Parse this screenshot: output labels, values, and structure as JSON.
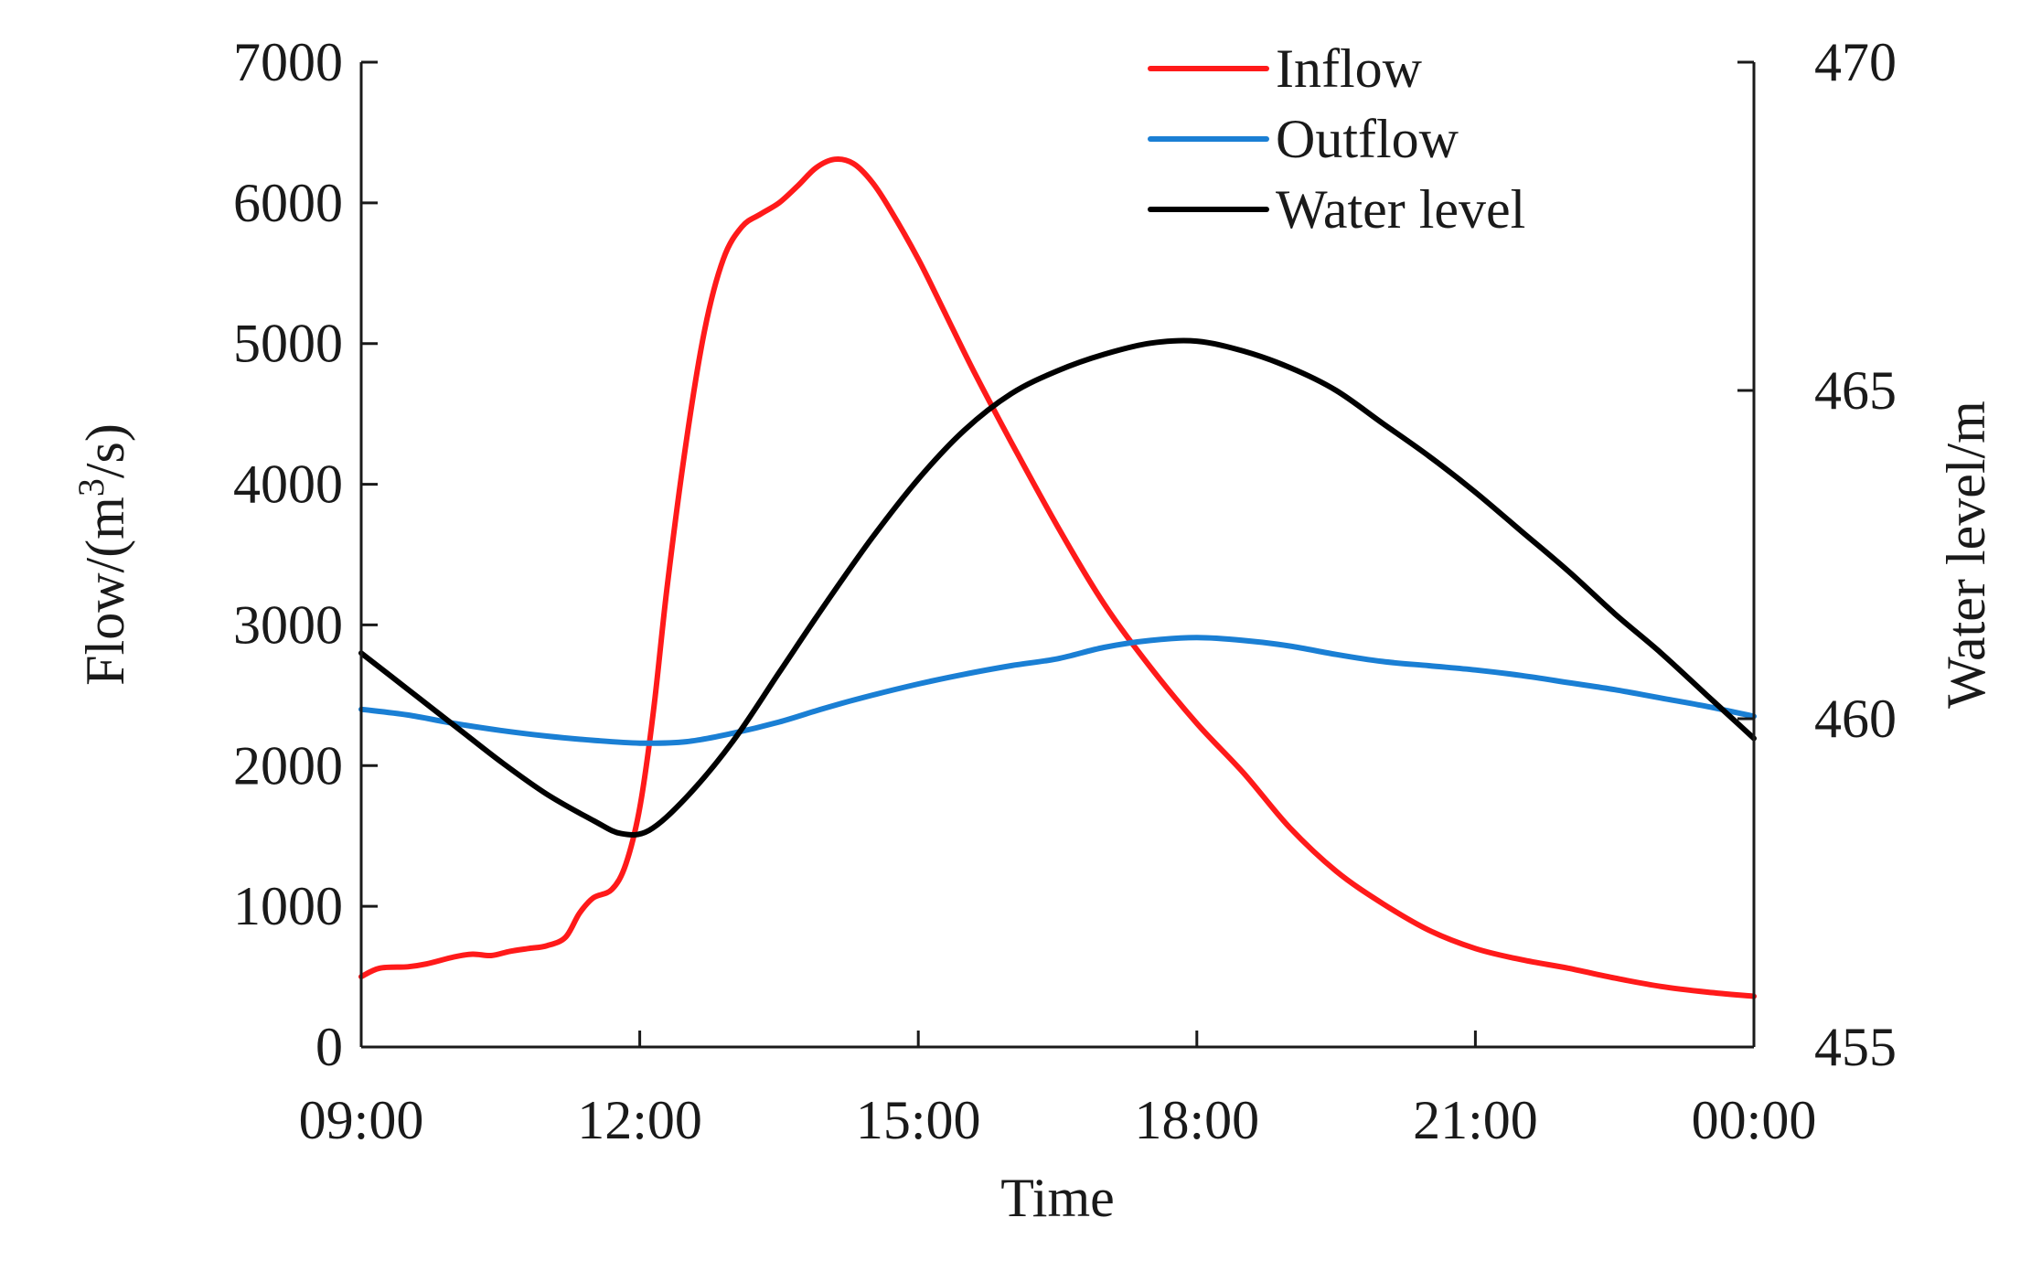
{
  "chart_data": {
    "type": "line",
    "title": "",
    "xlabel": "Time",
    "ylabel": "Flow/(m³/s)",
    "ylabel_parts": {
      "pre": "Flow/(m",
      "sup": "3",
      "post": "/s)"
    },
    "y2label": "Water level/m",
    "x_ticks": [
      {
        "h": 0,
        "label": "09:00"
      },
      {
        "h": 3,
        "label": "12:00"
      },
      {
        "h": 6,
        "label": "15:00"
      },
      {
        "h": 9,
        "label": "18:00"
      },
      {
        "h": 12,
        "label": "21:00"
      },
      {
        "h": 15,
        "label": "00:00"
      }
    ],
    "xlim": [
      0,
      15
    ],
    "ylim": [
      0,
      7000
    ],
    "y_ticks": [
      0,
      1000,
      2000,
      3000,
      4000,
      5000,
      6000,
      7000
    ],
    "y2lim": [
      455,
      470
    ],
    "y2_ticks": [
      455,
      460,
      465,
      470
    ],
    "x_unit_note": "hours after 09:00",
    "legend_position": "top-right",
    "series": [
      {
        "name": "Inflow",
        "axis": "left",
        "color": "#ff1a1a",
        "points": [
          [
            0,
            500
          ],
          [
            0.2,
            560
          ],
          [
            0.5,
            570
          ],
          [
            0.7,
            590
          ],
          [
            1.0,
            640
          ],
          [
            1.2,
            660
          ],
          [
            1.4,
            650
          ],
          [
            1.6,
            680
          ],
          [
            1.8,
            700
          ],
          [
            2.0,
            720
          ],
          [
            2.2,
            780
          ],
          [
            2.35,
            950
          ],
          [
            2.5,
            1060
          ],
          [
            2.7,
            1120
          ],
          [
            2.85,
            1300
          ],
          [
            3.0,
            1700
          ],
          [
            3.15,
            2400
          ],
          [
            3.3,
            3300
          ],
          [
            3.5,
            4300
          ],
          [
            3.7,
            5100
          ],
          [
            3.9,
            5600
          ],
          [
            4.1,
            5830
          ],
          [
            4.3,
            5920
          ],
          [
            4.5,
            6000
          ],
          [
            4.7,
            6120
          ],
          [
            4.9,
            6250
          ],
          [
            5.1,
            6310
          ],
          [
            5.3,
            6280
          ],
          [
            5.5,
            6150
          ],
          [
            5.7,
            5950
          ],
          [
            6.0,
            5600
          ],
          [
            6.3,
            5200
          ],
          [
            6.6,
            4800
          ],
          [
            7.0,
            4300
          ],
          [
            7.5,
            3700
          ],
          [
            8.0,
            3150
          ],
          [
            8.5,
            2700
          ],
          [
            9.0,
            2300
          ],
          [
            9.5,
            1950
          ],
          [
            10.0,
            1560
          ],
          [
            10.5,
            1250
          ],
          [
            11.0,
            1020
          ],
          [
            11.5,
            830
          ],
          [
            12.0,
            700
          ],
          [
            12.5,
            620
          ],
          [
            13.0,
            560
          ],
          [
            13.5,
            490
          ],
          [
            14.0,
            430
          ],
          [
            14.5,
            390
          ],
          [
            15.0,
            360
          ]
        ]
      },
      {
        "name": "Outflow",
        "axis": "left",
        "color": "#1a7fd4",
        "points": [
          [
            0,
            2400
          ],
          [
            0.5,
            2360
          ],
          [
            1.0,
            2300
          ],
          [
            1.5,
            2250
          ],
          [
            2.0,
            2210
          ],
          [
            2.5,
            2180
          ],
          [
            3.0,
            2160
          ],
          [
            3.5,
            2170
          ],
          [
            4.0,
            2230
          ],
          [
            4.5,
            2310
          ],
          [
            5.0,
            2410
          ],
          [
            5.5,
            2500
          ],
          [
            6.0,
            2580
          ],
          [
            6.5,
            2650
          ],
          [
            7.0,
            2710
          ],
          [
            7.5,
            2760
          ],
          [
            8.0,
            2840
          ],
          [
            8.5,
            2890
          ],
          [
            9.0,
            2910
          ],
          [
            9.5,
            2890
          ],
          [
            10.0,
            2850
          ],
          [
            10.5,
            2790
          ],
          [
            11.0,
            2740
          ],
          [
            11.5,
            2710
          ],
          [
            12.0,
            2680
          ],
          [
            12.5,
            2640
          ],
          [
            13.0,
            2590
          ],
          [
            13.5,
            2540
          ],
          [
            14.0,
            2480
          ],
          [
            14.5,
            2420
          ],
          [
            15.0,
            2350
          ]
        ]
      },
      {
        "name": "Water level",
        "axis": "right",
        "color": "#000000",
        "points": [
          [
            0,
            461.0
          ],
          [
            0.5,
            460.45
          ],
          [
            1.0,
            459.9
          ],
          [
            1.5,
            459.35
          ],
          [
            2.0,
            458.85
          ],
          [
            2.5,
            458.45
          ],
          [
            2.8,
            458.25
          ],
          [
            3.1,
            458.3
          ],
          [
            3.5,
            458.8
          ],
          [
            4.0,
            459.65
          ],
          [
            4.5,
            460.7
          ],
          [
            5.0,
            461.75
          ],
          [
            5.5,
            462.75
          ],
          [
            6.0,
            463.65
          ],
          [
            6.5,
            464.4
          ],
          [
            7.0,
            464.95
          ],
          [
            7.5,
            465.3
          ],
          [
            8.0,
            465.55
          ],
          [
            8.5,
            465.72
          ],
          [
            9.0,
            465.75
          ],
          [
            9.5,
            465.6
          ],
          [
            10.0,
            465.35
          ],
          [
            10.5,
            465.0
          ],
          [
            11.0,
            464.5
          ],
          [
            11.5,
            464.0
          ],
          [
            12.0,
            463.45
          ],
          [
            12.5,
            462.85
          ],
          [
            13.0,
            462.25
          ],
          [
            13.5,
            461.6
          ],
          [
            14.0,
            461.0
          ],
          [
            14.5,
            460.35
          ],
          [
            15.0,
            459.7
          ]
        ]
      }
    ]
  }
}
